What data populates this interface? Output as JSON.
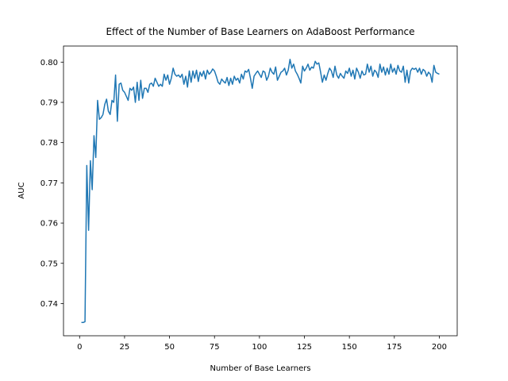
{
  "chart_data": {
    "type": "line",
    "title": "Effect of the Number of Base Learners on AdaBoost Performance",
    "x_label": "Number of Base Learners",
    "y_label": "AUC",
    "x": [
      1,
      2,
      3,
      4,
      5,
      6,
      7,
      8,
      9,
      10,
      11,
      12,
      13,
      14,
      15,
      16,
      17,
      18,
      19,
      20,
      21,
      22,
      23,
      24,
      25,
      26,
      27,
      28,
      29,
      30,
      31,
      32,
      33,
      34,
      35,
      36,
      37,
      38,
      39,
      40,
      41,
      42,
      43,
      44,
      45,
      46,
      47,
      48,
      49,
      50,
      51,
      52,
      53,
      54,
      55,
      56,
      57,
      58,
      59,
      60,
      61,
      62,
      63,
      64,
      65,
      66,
      67,
      68,
      69,
      70,
      71,
      72,
      73,
      74,
      75,
      76,
      77,
      78,
      79,
      80,
      81,
      82,
      83,
      84,
      85,
      86,
      87,
      88,
      89,
      90,
      91,
      92,
      93,
      94,
      95,
      96,
      97,
      98,
      99,
      100,
      101,
      102,
      103,
      104,
      105,
      106,
      107,
      108,
      109,
      110,
      111,
      112,
      113,
      114,
      115,
      116,
      117,
      118,
      119,
      120,
      121,
      122,
      123,
      124,
      125,
      126,
      127,
      128,
      129,
      130,
      131,
      132,
      133,
      134,
      135,
      136,
      137,
      138,
      139,
      140,
      141,
      142,
      143,
      144,
      145,
      146,
      147,
      148,
      149,
      150,
      151,
      152,
      153,
      154,
      155,
      156,
      157,
      158,
      159,
      160,
      161,
      162,
      163,
      164,
      165,
      166,
      167,
      168,
      169,
      170,
      171,
      172,
      173,
      174,
      175,
      176,
      177,
      178,
      179,
      180,
      181,
      182,
      183,
      184,
      185,
      186,
      187,
      188,
      189,
      190,
      191,
      192,
      193,
      194,
      195,
      196,
      197,
      198,
      199,
      200
    ],
    "series": [
      {
        "color": "#1f77b4",
        "values": [
          0.7353,
          0.7353,
          0.7355,
          0.7743,
          0.7582,
          0.7755,
          0.7683,
          0.7817,
          0.7763,
          0.7905,
          0.7858,
          0.7862,
          0.787,
          0.7895,
          0.7908,
          0.7878,
          0.787,
          0.7905,
          0.79,
          0.7968,
          0.7853,
          0.7945,
          0.7948,
          0.793,
          0.7925,
          0.7915,
          0.7905,
          0.7935,
          0.793,
          0.7938,
          0.79,
          0.795,
          0.7905,
          0.7955,
          0.791,
          0.7935,
          0.7935,
          0.7925,
          0.7945,
          0.7948,
          0.794,
          0.796,
          0.795,
          0.794,
          0.7945,
          0.794,
          0.797,
          0.7955,
          0.7968,
          0.7945,
          0.796,
          0.7985,
          0.797,
          0.7965,
          0.7968,
          0.7962,
          0.797,
          0.7945,
          0.7965,
          0.7938,
          0.7978,
          0.795,
          0.7978,
          0.796,
          0.798,
          0.7952,
          0.7975,
          0.7965,
          0.7978,
          0.7958,
          0.798,
          0.797,
          0.7975,
          0.7983,
          0.7978,
          0.7965,
          0.795,
          0.7945,
          0.7958,
          0.7952,
          0.7948,
          0.7962,
          0.7942,
          0.796,
          0.7945,
          0.7965,
          0.7955,
          0.796,
          0.7948,
          0.797,
          0.7958,
          0.7978,
          0.7975,
          0.7982,
          0.796,
          0.7935,
          0.7965,
          0.7972,
          0.7978,
          0.797,
          0.7962,
          0.7978,
          0.7975,
          0.7955,
          0.7965,
          0.7985,
          0.7975,
          0.797,
          0.7988,
          0.7955,
          0.7965,
          0.7975,
          0.7978,
          0.7985,
          0.7968,
          0.798,
          0.8007,
          0.7985,
          0.7995,
          0.7978,
          0.797,
          0.796,
          0.7948,
          0.799,
          0.7978,
          0.7985,
          0.7995,
          0.798,
          0.7988,
          0.7985,
          0.8002,
          0.7995,
          0.7998,
          0.7975,
          0.795,
          0.7968,
          0.7955,
          0.7972,
          0.7985,
          0.7978,
          0.7962,
          0.799,
          0.7968,
          0.796,
          0.7972,
          0.7965,
          0.796,
          0.7978,
          0.7972,
          0.7985,
          0.7965,
          0.798,
          0.7958,
          0.7985,
          0.7975,
          0.796,
          0.7978,
          0.7968,
          0.797,
          0.7995,
          0.7975,
          0.799,
          0.7965,
          0.798,
          0.7975,
          0.7962,
          0.7995,
          0.7975,
          0.7988,
          0.7968,
          0.7985,
          0.797,
          0.7995,
          0.7975,
          0.7985,
          0.797,
          0.7992,
          0.7978,
          0.7975,
          0.799,
          0.795,
          0.798,
          0.7948,
          0.7978,
          0.7985,
          0.7982,
          0.7985,
          0.7975,
          0.7985,
          0.797,
          0.7982,
          0.7978,
          0.7965,
          0.7975,
          0.797,
          0.795,
          0.7992,
          0.7975,
          0.7972,
          0.797
        ]
      }
    ],
    "xlim": [
      -8.95,
      209.95
    ],
    "ylim": [
      0.732,
      0.804
    ],
    "xticks": [
      0,
      25,
      50,
      75,
      100,
      125,
      150,
      175,
      200
    ],
    "yticks": [
      0.74,
      0.75,
      0.76,
      0.77,
      0.78,
      0.79,
      {
        "value": 0.8,
        "label": "0.80"
      }
    ],
    "grid": false
  }
}
